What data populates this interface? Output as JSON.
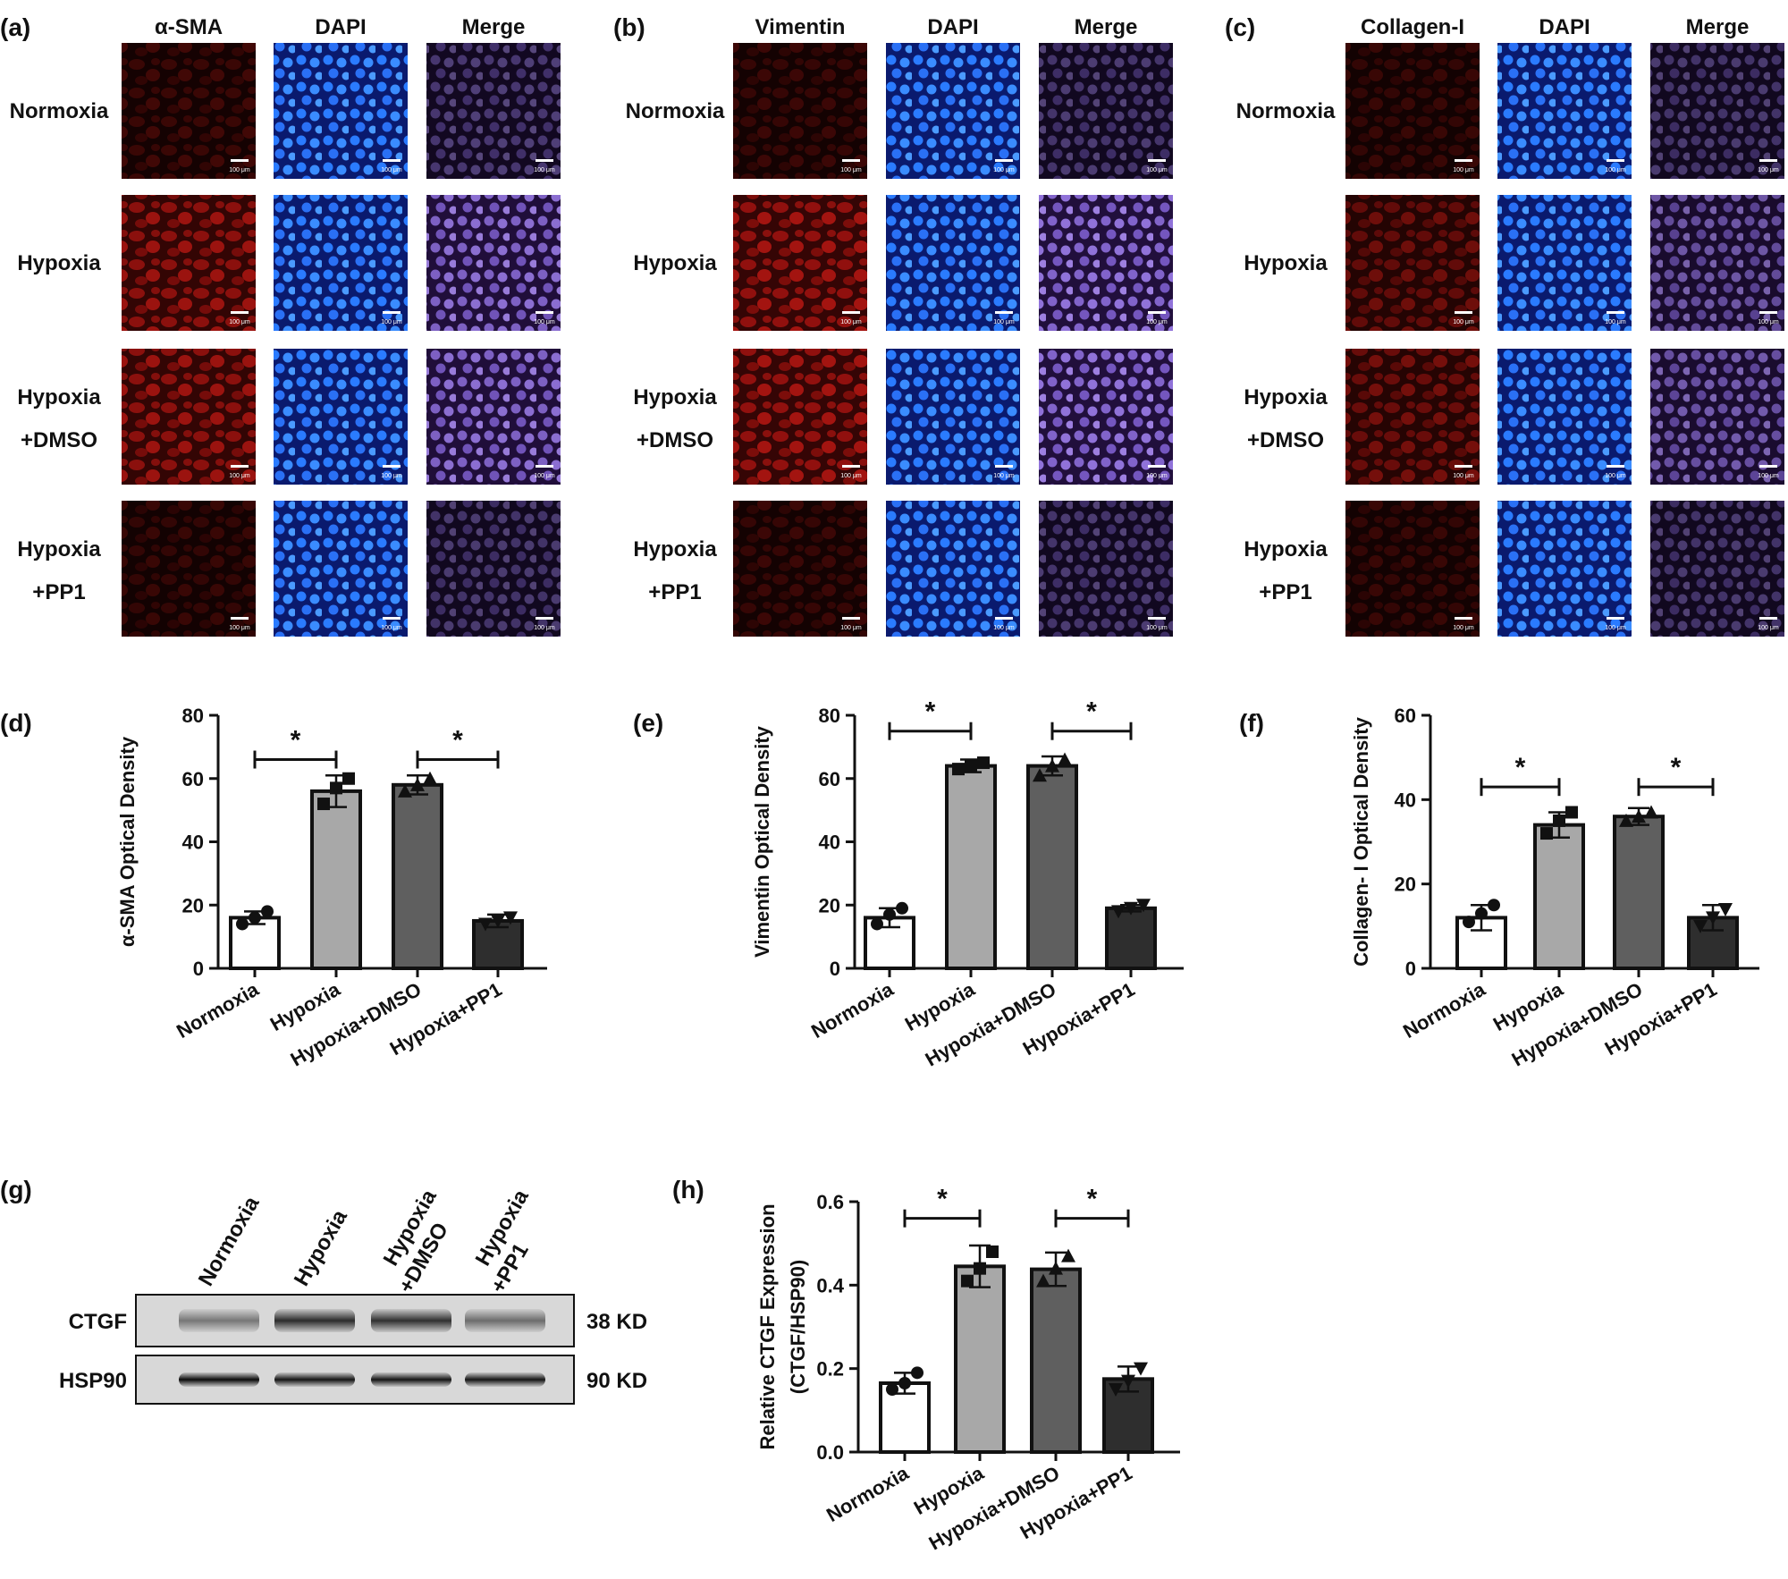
{
  "panel_labels": {
    "a": "(a)",
    "b": "(b)",
    "c": "(c)",
    "d": "(d)",
    "e": "(e)",
    "f": "(f)",
    "g": "(g)",
    "h": "(h)"
  },
  "scale_bar_text": "100 μm",
  "micrographs": [
    {
      "panel": "a",
      "columns": [
        "α-SMA",
        "DAPI",
        "Merge"
      ],
      "rows": [
        [
          "Normoxia"
        ],
        [
          "Hypoxia"
        ],
        [
          "Hypoxia",
          "+DMSO"
        ],
        [
          "Hypoxia",
          "+PP1"
        ]
      ],
      "marker_intensity": [
        0.25,
        0.85,
        0.85,
        0.2
      ]
    },
    {
      "panel": "b",
      "columns": [
        "Vimentin",
        "DAPI",
        "Merge"
      ],
      "rows": [
        [
          "Normoxia"
        ],
        [
          "Hypoxia"
        ],
        [
          "Hypoxia",
          "+DMSO"
        ],
        [
          "Hypoxia",
          "+PP1"
        ]
      ],
      "marker_intensity": [
        0.22,
        0.9,
        0.9,
        0.22
      ]
    },
    {
      "panel": "c",
      "columns": [
        "Collagen-I",
        "DAPI",
        "Merge"
      ],
      "rows": [
        [
          "Normoxia"
        ],
        [
          "Hypoxia"
        ],
        [
          "Hypoxia",
          "+DMSO"
        ],
        [
          "Hypoxia",
          "+PP1"
        ]
      ],
      "marker_intensity": [
        0.2,
        0.55,
        0.6,
        0.2
      ]
    }
  ],
  "colors": {
    "marker_red": "#c8140f",
    "dapi_blue": "#1e60f0",
    "bar_fills": [
      "#ffffff",
      "#a8a8a8",
      "#5f5f5f",
      "#2e2e2e"
    ]
  },
  "western_blot": {
    "lanes": [
      [
        "Normoxia"
      ],
      [
        "Hypoxia"
      ],
      [
        "Hypoxia",
        "+DMSO"
      ],
      [
        "Hypoxia",
        "+PP1"
      ]
    ],
    "bands": [
      {
        "protein": "CTGF",
        "size": "38 KD",
        "intensity": [
          0.45,
          0.8,
          0.78,
          0.5
        ]
      },
      {
        "protein": "HSP90",
        "size": "90 KD",
        "intensity": [
          0.95,
          0.9,
          0.9,
          0.9
        ]
      }
    ]
  },
  "chart_data": [
    {
      "panel": "d",
      "type": "bar",
      "categories": [
        "Normoxia",
        "Hypoxia",
        "Hypoxia+DMSO",
        "Hypoxia+PP1"
      ],
      "values": [
        16,
        56,
        58,
        15
      ],
      "errors": [
        2,
        5,
        3,
        2
      ],
      "points": [
        [
          14,
          16,
          18
        ],
        [
          52,
          57,
          60
        ],
        [
          56,
          58,
          60
        ],
        [
          14,
          15,
          16
        ]
      ],
      "markers": [
        "circle",
        "square",
        "triangle",
        "down-triangle"
      ],
      "ylabel": "α-SMA Optical Density",
      "ylim": [
        0,
        80
      ],
      "yticks": [
        0,
        20,
        40,
        60,
        80
      ],
      "significance": [
        {
          "from": 0,
          "to": 1,
          "label": "*",
          "y": 66
        },
        {
          "from": 2,
          "to": 3,
          "label": "*",
          "y": 66
        }
      ]
    },
    {
      "panel": "e",
      "type": "bar",
      "categories": [
        "Normoxia",
        "Hypoxia",
        "Hypoxia+DMSO",
        "Hypoxia+PP1"
      ],
      "values": [
        16,
        64,
        64,
        19
      ],
      "errors": [
        3,
        2,
        3,
        1
      ],
      "points": [
        [
          14,
          17,
          19
        ],
        [
          63,
          64,
          65
        ],
        [
          61,
          64,
          66
        ],
        [
          18,
          19,
          20
        ]
      ],
      "markers": [
        "circle",
        "square",
        "triangle",
        "down-triangle"
      ],
      "ylabel": "Vimentin Optical Density",
      "ylim": [
        0,
        80
      ],
      "yticks": [
        0,
        20,
        40,
        60,
        80
      ],
      "significance": [
        {
          "from": 0,
          "to": 1,
          "label": "*",
          "y": 75
        },
        {
          "from": 2,
          "to": 3,
          "label": "*",
          "y": 75
        }
      ]
    },
    {
      "panel": "f",
      "type": "bar",
      "categories": [
        "Normoxia",
        "Hypoxia",
        "Hypoxia+DMSO",
        "Hypoxia+PP1"
      ],
      "values": [
        12,
        34,
        36,
        12
      ],
      "errors": [
        3,
        3,
        2,
        3
      ],
      "points": [
        [
          11,
          13,
          15
        ],
        [
          32,
          35,
          37
        ],
        [
          35,
          36,
          37
        ],
        [
          10,
          12,
          14
        ]
      ],
      "markers": [
        "circle",
        "square",
        "triangle",
        "down-triangle"
      ],
      "ylabel": "Collagen- I Optical Density",
      "ylim": [
        0,
        60
      ],
      "yticks": [
        0,
        20,
        40,
        60
      ],
      "significance": [
        {
          "from": 0,
          "to": 1,
          "label": "*",
          "y": 43
        },
        {
          "from": 2,
          "to": 3,
          "label": "*",
          "y": 43
        }
      ]
    },
    {
      "panel": "h",
      "type": "bar",
      "categories": [
        "Normoxia",
        "Hypoxia",
        "Hypoxia+DMSO",
        "Hypoxia+PP1"
      ],
      "values": [
        0.165,
        0.445,
        0.438,
        0.175
      ],
      "errors": [
        0.025,
        0.05,
        0.04,
        0.03
      ],
      "points": [
        [
          0.15,
          0.165,
          0.19
        ],
        [
          0.41,
          0.44,
          0.48
        ],
        [
          0.41,
          0.44,
          0.47
        ],
        [
          0.15,
          0.17,
          0.2
        ]
      ],
      "markers": [
        "circle",
        "square",
        "triangle",
        "down-triangle"
      ],
      "ylabel": "Relative CTGF Expression",
      "ylabel2": "(CTGF/HSP90)",
      "ylim": [
        0,
        0.6
      ],
      "yticks": [
        0.0,
        0.2,
        0.4,
        0.6
      ],
      "ytick_decimals": 1,
      "significance": [
        {
          "from": 0,
          "to": 1,
          "label": "*",
          "y": 0.56
        },
        {
          "from": 2,
          "to": 3,
          "label": "*",
          "y": 0.56
        }
      ]
    }
  ]
}
